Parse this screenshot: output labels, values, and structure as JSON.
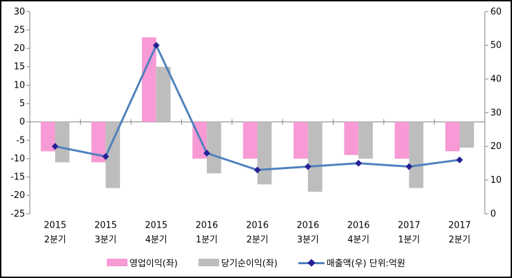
{
  "window": {
    "background": "#ffffff",
    "border_color": "#000000"
  },
  "chart_data": {
    "type": "bar",
    "subtype": "combo-bar-line",
    "title": "",
    "xlabel": "",
    "ylabel": "",
    "grid": false,
    "legend_position": "bottom",
    "categories": [
      "2015 2분기",
      "2015 3분기",
      "2015 4분기",
      "2016 1분기",
      "2016 2분기",
      "2016 3분기",
      "2016 4분기",
      "2017 1분기",
      "2017 2분기"
    ],
    "series": [
      {
        "name": "영업이익(좌)",
        "type": "bar",
        "axis": "left",
        "color": "#F79AD5",
        "values": [
          -8,
          -11,
          23,
          -10,
          -10,
          -10,
          -9,
          -10,
          -8
        ]
      },
      {
        "name": "당기순이익(좌)",
        "type": "bar",
        "axis": "left",
        "color": "#BDBDBD",
        "values": [
          -11,
          -18,
          15,
          -14,
          -17,
          -19,
          -10,
          -18,
          -7
        ]
      },
      {
        "name": "매출액(우) 단위:억원",
        "type": "line",
        "axis": "right",
        "color": "#4F81BD",
        "marker": "diamond",
        "marker_color": "#262196",
        "values": [
          20,
          17,
          50,
          18,
          13,
          14,
          15,
          14,
          16
        ]
      }
    ],
    "axes": {
      "left": {
        "min": -25,
        "max": 30,
        "step": 5,
        "tick_labels": [
          "30",
          "25",
          "20",
          "15",
          "10",
          "5",
          "0",
          "-5",
          "-10",
          "-15",
          "-20",
          "-25"
        ]
      },
      "right": {
        "min": 0,
        "max": 60,
        "step": 10,
        "tick_labels": [
          "60",
          "50",
          "40",
          "30",
          "20",
          "10",
          "0"
        ]
      },
      "axis_color": "#808080",
      "text_color": "#000000"
    }
  }
}
